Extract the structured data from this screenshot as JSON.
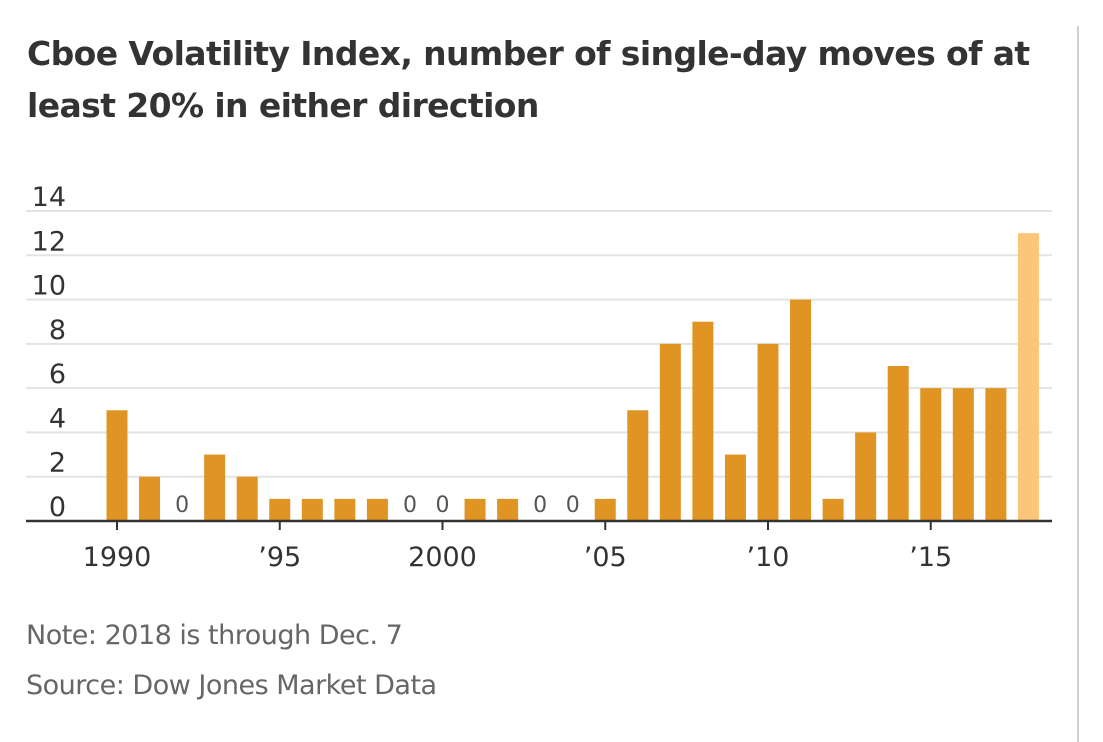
{
  "chart_data": {
    "type": "bar",
    "title": "Cboe Volatility Index, number of single-day moves of at least 20% in either direction",
    "xlabel": "",
    "ylabel": "",
    "ylim": [
      0,
      14
    ],
    "yticks": [
      0,
      2,
      4,
      6,
      8,
      10,
      12,
      14
    ],
    "ytick_labels": [
      "0",
      "2",
      "4",
      "6",
      "8",
      "10",
      "12",
      "14"
    ],
    "grid": true,
    "categories": [
      1990,
      1991,
      1992,
      1993,
      1994,
      1995,
      1996,
      1997,
      1998,
      1999,
      2000,
      2001,
      2002,
      2003,
      2004,
      2005,
      2006,
      2007,
      2008,
      2009,
      2010,
      2011,
      2012,
      2013,
      2014,
      2015,
      2016,
      2017,
      2018
    ],
    "values": [
      5,
      2,
      0,
      3,
      2,
      1,
      1,
      1,
      1,
      0,
      0,
      1,
      1,
      0,
      0,
      1,
      5,
      8,
      9,
      3,
      8,
      10,
      1,
      4,
      7,
      6,
      6,
      6,
      13
    ],
    "xticks": [
      {
        "year": 1990,
        "label": "1990"
      },
      {
        "year": 1995,
        "label": "’95"
      },
      {
        "year": 2000,
        "label": "2000"
      },
      {
        "year": 2005,
        "label": "’05"
      },
      {
        "year": 2010,
        "label": "’10"
      },
      {
        "year": 2015,
        "label": "’15"
      }
    ],
    "zero_value_label": "0",
    "highlight_category": 2018,
    "colors": {
      "bar": "#e09424",
      "bar_highlight": "#fbc679",
      "grid": "#e3e3e3",
      "axis": "#333333",
      "tick_text": "#333333",
      "zero_label": "#555555"
    }
  },
  "footer": {
    "note": "Note: 2018 is through Dec. 7",
    "source": "Source: Dow Jones Market Data"
  }
}
